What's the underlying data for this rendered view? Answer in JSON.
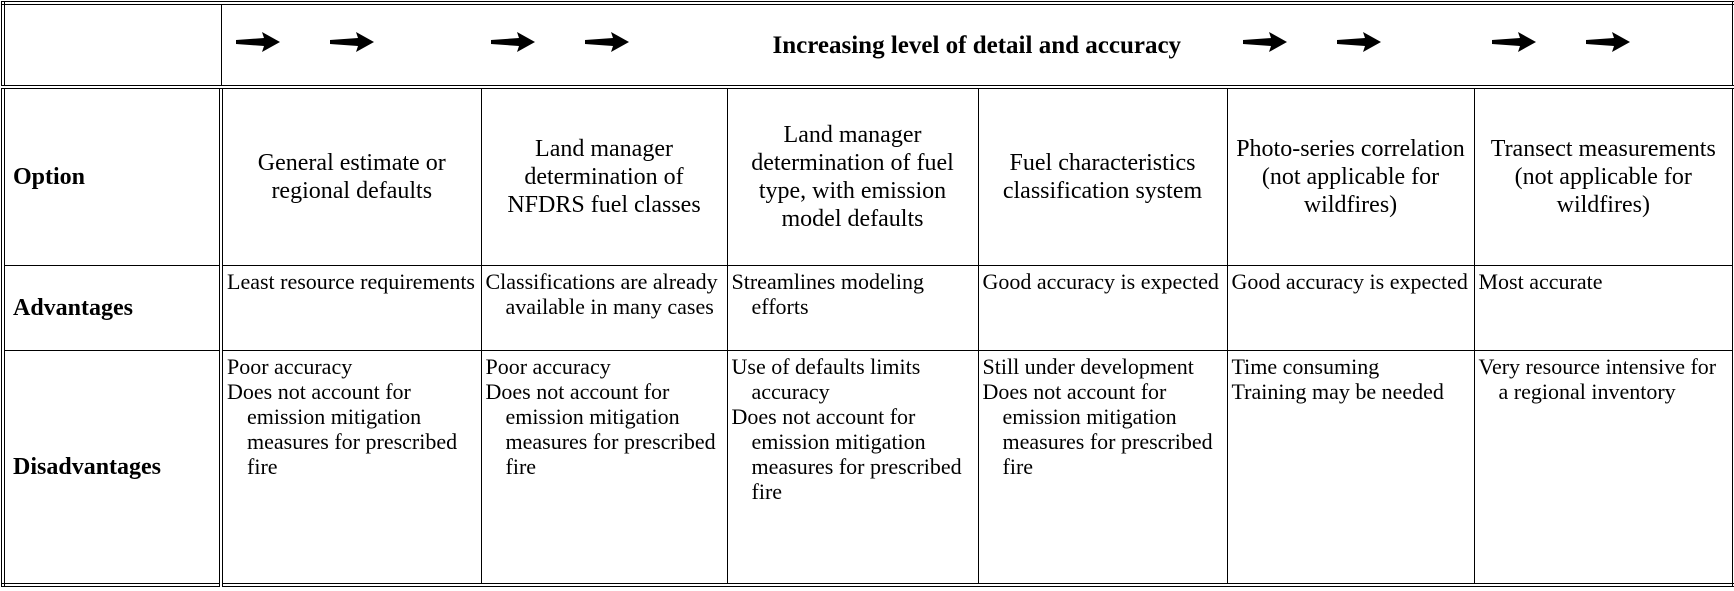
{
  "header": {
    "title": "Increasing level of detail and accuracy"
  },
  "table": {
    "rows": [
      {
        "label": "Option",
        "cells": [
          "General estimate or regional defaults",
          "Land manager determination of NFDRS fuel classes",
          "Land manager determination of fuel type, with emission model defaults",
          "Fuel characteristics classification system",
          "Photo-series correlation (not applicable for wildfires)",
          "Transect measurements (not applicable for wildfires)"
        ]
      },
      {
        "label": "Advantages",
        "cells": [
          [
            "Least resource requirements"
          ],
          [
            "Classifications are already available in many cases"
          ],
          [
            "Streamlines modeling efforts"
          ],
          [
            "Good accuracy is expected"
          ],
          [
            "Good accuracy is expected"
          ],
          [
            "Most accurate"
          ]
        ]
      },
      {
        "label": "Disadvantages",
        "cells": [
          [
            "Poor accuracy",
            "Does not account for emission mitigation measures for prescribed fire"
          ],
          [
            "Poor accuracy",
            "Does not account for emission mitigation measures for prescribed fire"
          ],
          [
            "Use of defaults limits accuracy",
            "Does not account for emission mitigation measures for prescribed fire"
          ],
          [
            "Still under development",
            "Does not account for emission mitigation measures for prescribed fire"
          ],
          [
            "Time consuming",
            "Training may be needed"
          ],
          [
            "Very resource intensive for a regional inventory"
          ]
        ]
      }
    ]
  }
}
